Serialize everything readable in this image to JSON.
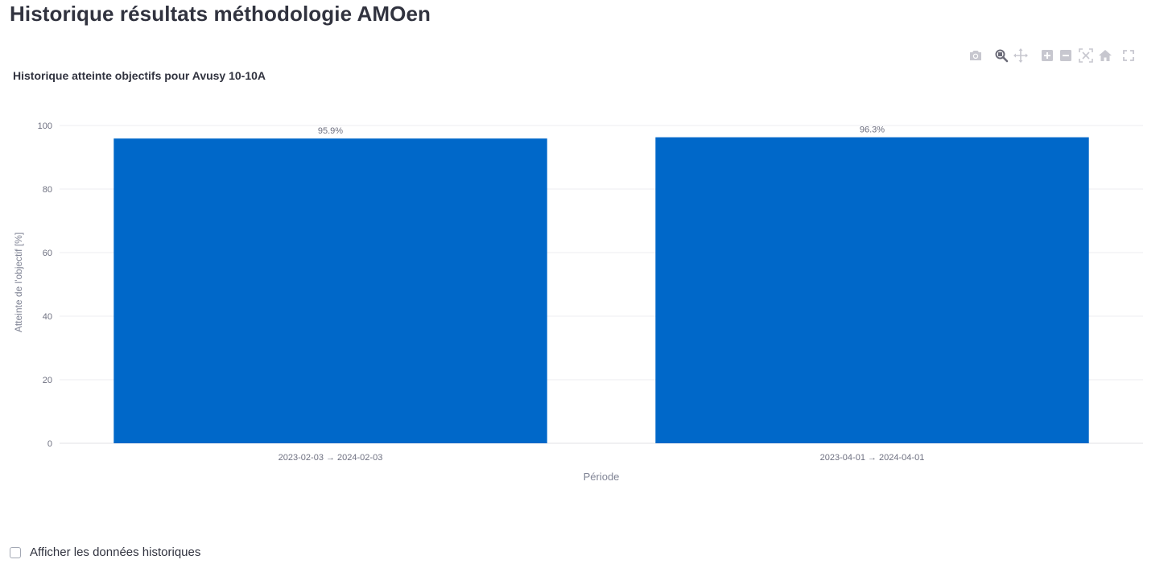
{
  "page": {
    "title": "Historique résultats méthodologie AMOen"
  },
  "modebar": {
    "buttons": [
      {
        "name": "camera-icon",
        "title": "Download plot as a png"
      },
      {
        "name": "zoom-icon",
        "title": "Zoom"
      },
      {
        "name": "pan-icon",
        "title": "Pan"
      },
      {
        "name": "zoom-in-icon",
        "title": "Zoom in"
      },
      {
        "name": "zoom-out-icon",
        "title": "Zoom out"
      },
      {
        "name": "autoscale-icon",
        "title": "Autoscale"
      },
      {
        "name": "home-icon",
        "title": "Reset axes"
      },
      {
        "name": "fullscreen-icon",
        "title": "Fullscreen"
      }
    ],
    "colors": {
      "inactive": "#c7c7cf",
      "active": "#6b6b78"
    }
  },
  "chart_data": {
    "type": "bar",
    "title": "Historique atteinte objectifs pour Avusy 10-10A",
    "xlabel": "Période",
    "ylabel": "Atteinte de l'objectif [%]",
    "categories": [
      "2023-02-03 → 2024-02-03",
      "2023-04-01 → 2024-04-01"
    ],
    "values": [
      95.9,
      96.3
    ],
    "data_labels": [
      "95.9%",
      "96.3%"
    ],
    "ylim": [
      0,
      100
    ],
    "yticks": [
      0,
      20,
      40,
      60,
      80,
      100
    ],
    "grid": true,
    "bar_color": "#0068c9"
  },
  "controls": {
    "show_history_label": "Afficher les données historiques",
    "show_history_checked": false
  }
}
